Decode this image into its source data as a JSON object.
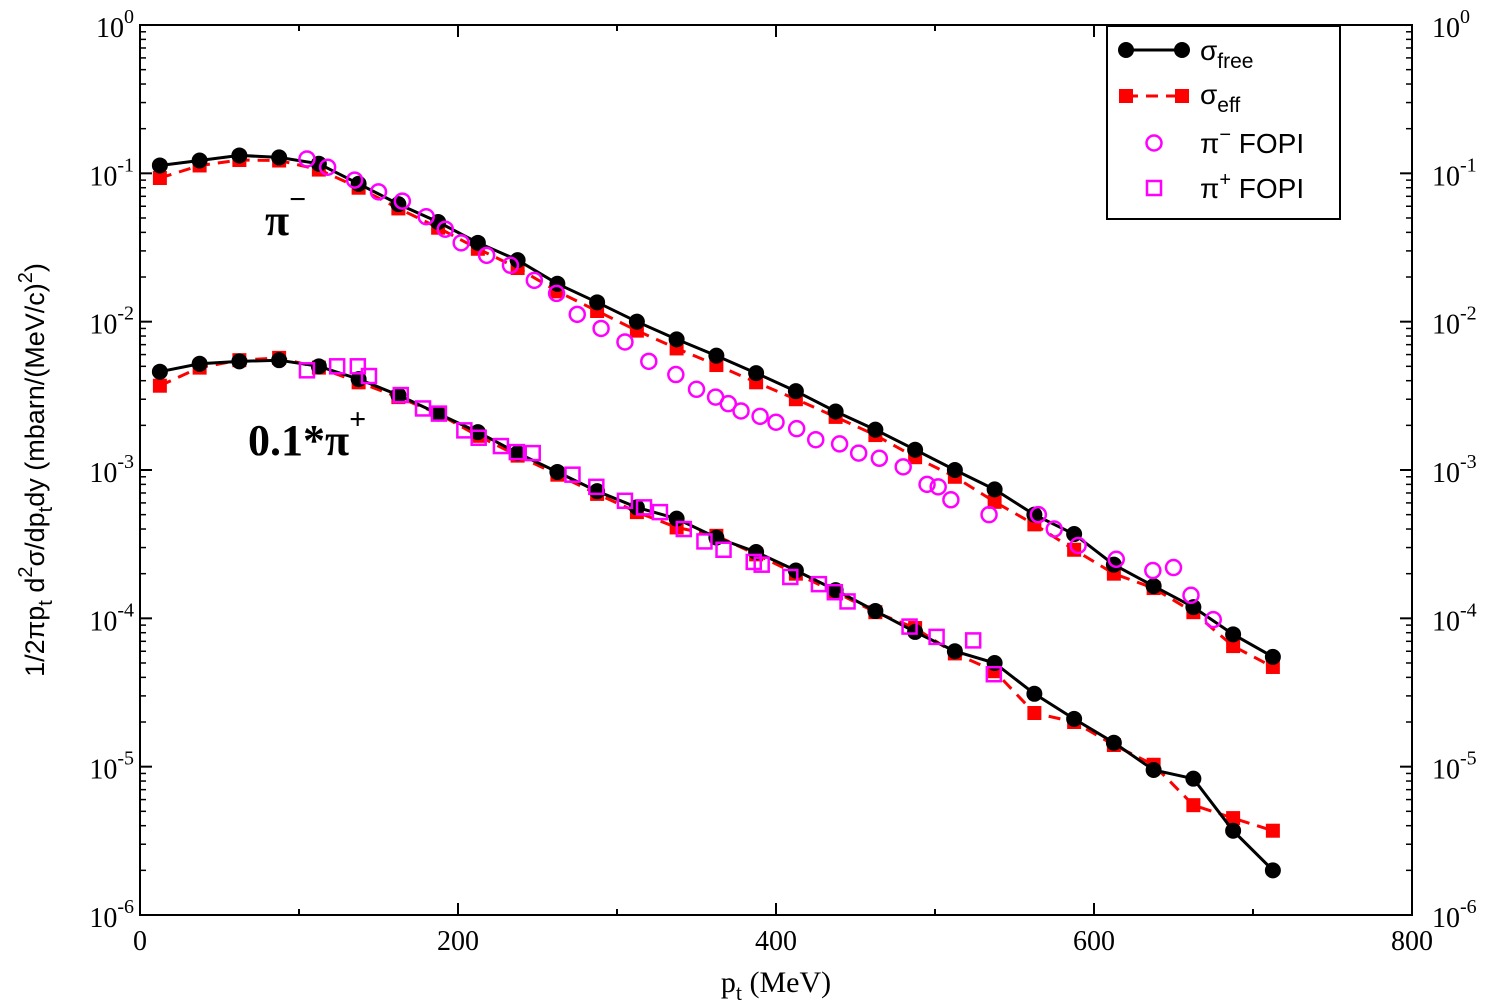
{
  "chart_data": {
    "type": "line",
    "xlabel": "p",
    "xlabel_sub": "t",
    "xlabel_unit": " (MeV)",
    "ylabel_parts": [
      "1/2πp",
      "t",
      " d",
      "2",
      "σ/dp",
      "t",
      "dy (mbarn/(MeV/c)",
      "2",
      ")"
    ],
    "xlim": [
      0,
      800
    ],
    "ylim": [
      1e-06,
      1
    ],
    "yscale": "log",
    "x_ticks": [
      "0",
      "200",
      "400",
      "600",
      "800"
    ],
    "y_tick_exponents": [
      "0",
      "-1",
      "-2",
      "-3",
      "-4",
      "-5",
      "-6"
    ],
    "y_tick_base": "10",
    "grid": false,
    "legend_position": "top-right",
    "legend": [
      {
        "main": "σ",
        "sub": "free",
        "sup": ""
      },
      {
        "main": "σ",
        "sub": "eff",
        "sup": ""
      },
      {
        "main": "π",
        "sub": "",
        "sup": "−",
        "tail": " FOPI"
      },
      {
        "main": "π",
        "sub": "",
        "sup": "+",
        "tail": " FOPI"
      }
    ],
    "annotations": [
      {
        "text": "π",
        "sup": "−"
      },
      {
        "text": "0.1*π",
        "sup": "+"
      }
    ],
    "colors": {
      "free": "#000000",
      "eff": "#ff0000",
      "fopi": "#ff00ff"
    },
    "series": [
      {
        "id": "free_pim",
        "x": [
          12.5,
          37.5,
          62.5,
          87.5,
          112.5,
          137.5,
          162.5,
          187.5,
          212.5,
          237.5,
          262.5,
          287.5,
          312.5,
          337.5,
          362.5,
          387.5,
          412.5,
          437.5,
          462.5,
          487.5,
          512.5,
          537.5,
          562.5,
          587.5,
          612.5,
          637.5,
          662.5,
          687.5,
          712.5
        ],
        "y": [
          0.113,
          0.122,
          0.132,
          0.128,
          0.116,
          0.085,
          0.062,
          0.047,
          0.034,
          0.026,
          0.018,
          0.0135,
          0.01,
          0.0076,
          0.0059,
          0.0045,
          0.0034,
          0.00248,
          0.00187,
          0.00137,
          0.001,
          0.00074,
          0.0005,
          0.00037,
          0.00023,
          0.000165,
          0.000119,
          7.8e-05,
          5.5e-05
        ]
      },
      {
        "id": "eff_pim",
        "x": [
          12.5,
          37.5,
          62.5,
          87.5,
          112.5,
          137.5,
          162.5,
          187.5,
          212.5,
          237.5,
          262.5,
          287.5,
          312.5,
          337.5,
          362.5,
          387.5,
          412.5,
          437.5,
          462.5,
          487.5,
          512.5,
          537.5,
          562.5,
          587.5,
          612.5,
          637.5,
          662.5,
          687.5,
          712.5
        ],
        "y": [
          0.093,
          0.113,
          0.123,
          0.122,
          0.106,
          0.08,
          0.058,
          0.043,
          0.031,
          0.023,
          0.016,
          0.0118,
          0.0087,
          0.0066,
          0.0051,
          0.0039,
          0.003,
          0.00228,
          0.00172,
          0.00122,
          0.0009,
          0.00061,
          0.00043,
          0.00029,
          0.0002,
          0.00016,
          0.00011,
          6.5e-05,
          4.7e-05
        ]
      },
      {
        "id": "fopi_pim",
        "x": [
          105,
          118,
          135,
          150,
          165,
          180,
          192,
          202,
          218,
          233,
          248,
          262,
          275,
          290,
          305,
          320,
          337,
          350,
          362,
          370,
          378,
          390,
          400,
          413,
          425,
          440,
          452,
          465,
          480,
          495,
          502,
          510,
          534,
          565,
          575,
          590,
          614,
          637,
          650,
          661,
          675
        ],
        "y": [
          0.125,
          0.11,
          0.09,
          0.075,
          0.065,
          0.051,
          0.042,
          0.034,
          0.028,
          0.024,
          0.019,
          0.0155,
          0.0112,
          0.009,
          0.0073,
          0.0054,
          0.0044,
          0.0035,
          0.0031,
          0.0028,
          0.0025,
          0.0023,
          0.0021,
          0.0019,
          0.0016,
          0.0015,
          0.0013,
          0.0012,
          0.00105,
          0.0008,
          0.00077,
          0.00063,
          0.0005,
          0.0005,
          0.0004,
          0.00031,
          0.00025,
          0.00021,
          0.00022,
          0.000143,
          9.8e-05
        ]
      },
      {
        "id": "free_pip",
        "x": [
          12.5,
          37.5,
          62.5,
          87.5,
          112.5,
          137.5,
          162.5,
          187.5,
          212.5,
          237.5,
          262.5,
          287.5,
          312.5,
          337.5,
          362.5,
          387.5,
          412.5,
          437.5,
          462.5,
          487.5,
          512.5,
          537.5,
          562.5,
          587.5,
          612.5,
          637.5,
          662.5,
          687.5,
          712.5
        ],
        "y": [
          0.0046,
          0.0052,
          0.0054,
          0.0055,
          0.005,
          0.0041,
          0.0032,
          0.0024,
          0.0018,
          0.0013,
          0.00097,
          0.00072,
          0.00056,
          0.00047,
          0.00035,
          0.00028,
          0.00021,
          0.000155,
          0.000112,
          8.1e-05,
          6e-05,
          5e-05,
          3.1e-05,
          2.1e-05,
          1.45e-05,
          9.5e-06,
          8.3e-06,
          3.7e-06,
          2e-06
        ]
      },
      {
        "id": "eff_pip",
        "x": [
          12.5,
          37.5,
          62.5,
          87.5,
          112.5,
          137.5,
          162.5,
          187.5,
          212.5,
          237.5,
          262.5,
          287.5,
          312.5,
          337.5,
          362.5,
          387.5,
          412.5,
          437.5,
          462.5,
          487.5,
          512.5,
          537.5,
          562.5,
          587.5,
          612.5,
          637.5,
          662.5,
          687.5,
          712.5
        ],
        "y": [
          0.0037,
          0.0049,
          0.0055,
          0.0057,
          0.0049,
          0.0039,
          0.0031,
          0.0024,
          0.0017,
          0.00125,
          0.00093,
          0.00069,
          0.00052,
          0.00041,
          0.00036,
          0.00027,
          0.0002,
          0.00015,
          0.00011,
          8.6e-05,
          5.8e-05,
          4.4e-05,
          2.3e-05,
          2e-05,
          1.4e-05,
          1.03e-05,
          5.5e-06,
          4.5e-06,
          3.7e-06
        ]
      },
      {
        "id": "fopi_pip",
        "x": [
          105,
          124,
          137,
          144,
          164,
          178,
          188,
          204,
          213,
          227,
          237,
          247,
          272,
          287,
          305,
          317,
          327,
          342,
          355,
          367,
          386,
          391,
          409,
          427,
          437,
          445,
          484,
          501,
          524,
          537
        ],
        "y": [
          0.0047,
          0.005,
          0.005,
          0.0043,
          0.0032,
          0.0026,
          0.0024,
          0.00185,
          0.00165,
          0.00145,
          0.00132,
          0.0013,
          0.00093,
          0.00077,
          0.00062,
          0.00056,
          0.00052,
          0.0004,
          0.00033,
          0.00029,
          0.00024,
          0.00023,
          0.00019,
          0.00017,
          0.00015,
          0.00013,
          8.8e-05,
          7.5e-05,
          7.1e-05,
          4.2e-05
        ]
      }
    ]
  }
}
